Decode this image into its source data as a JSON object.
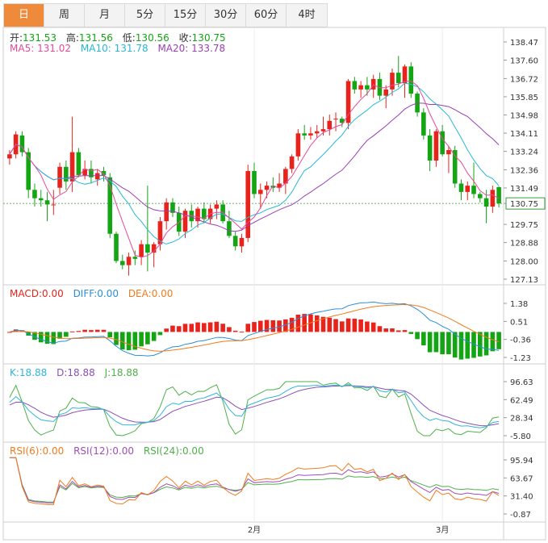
{
  "tabs": [
    {
      "label": "日",
      "active": true
    },
    {
      "label": "周"
    },
    {
      "label": "月"
    },
    {
      "label": "5分"
    },
    {
      "label": "15分"
    },
    {
      "label": "30分"
    },
    {
      "label": "60分"
    },
    {
      "label": "4时"
    }
  ],
  "colors": {
    "up": "#e8231c",
    "down": "#13a513",
    "ma5": "#e64a9a",
    "ma10": "#27b8d6",
    "ma20": "#9b3fb5",
    "macd": "#e8231c",
    "diff": "#2a8fd6",
    "dea": "#f07b1e",
    "k": "#30b6d9",
    "d": "#8a50b5",
    "j": "#4fb04a",
    "rsi6": "#f07b1e",
    "rsi12": "#a04fb5",
    "rsi24": "#4fb04a",
    "tab_active": "#ef8a3a"
  },
  "ohlc_legend": {
    "open_label": "开:",
    "open": "131.53",
    "high_label": "高:",
    "high": "131.56",
    "low_label": "低:",
    "low": "130.56",
    "close_label": "收:",
    "close": "130.75"
  },
  "ma_legend": {
    "ma5_label": "MA5:",
    "ma5": "131.02",
    "ma10_label": "MA10:",
    "ma10": "131.78",
    "ma20_label": "MA20:",
    "ma20": "133.78"
  },
  "macd_legend": {
    "macd_label": "MACD:",
    "macd": "0.00",
    "diff_label": "DIFF:",
    "diff": "0.00",
    "dea_label": "DEA:",
    "dea": "0.00"
  },
  "kdj_legend": {
    "k_label": "K:",
    "k": "18.88",
    "d_label": "D:",
    "d": "18.88",
    "j_label": "J:",
    "j": "18.88"
  },
  "rsi_legend": {
    "rsi6_label": "RSI(6):",
    "rsi6": "0.00",
    "rsi12_label": "RSI(12):",
    "rsi12": "0.00",
    "rsi24_label": "RSI(24):",
    "rsi24": "0.00"
  },
  "chart_data": [
    {
      "type": "candlestick",
      "y_ticks": [
        "138.47",
        "137.60",
        "136.72",
        "135.85",
        "134.98",
        "134.11",
        "133.24",
        "132.36",
        "131.49",
        "130.75",
        "129.75",
        "128.88",
        "128.00",
        "127.13"
      ],
      "ylim": [
        127.13,
        138.47
      ],
      "last_price": 130.75,
      "x_labels": [
        {
          "index": 39,
          "label": "2月"
        },
        {
          "index": 69,
          "label": "3月"
        }
      ],
      "candles": [
        {
          "o": 132.9,
          "h": 133.3,
          "l": 132.6,
          "c": 133.1
        },
        {
          "o": 133.1,
          "h": 134.2,
          "l": 132.9,
          "c": 134.05
        },
        {
          "o": 134.0,
          "h": 134.2,
          "l": 133.0,
          "c": 133.2
        },
        {
          "o": 133.2,
          "h": 133.4,
          "l": 131.0,
          "c": 131.4
        },
        {
          "o": 131.4,
          "h": 131.7,
          "l": 130.6,
          "c": 131.0
        },
        {
          "o": 131.0,
          "h": 131.4,
          "l": 130.6,
          "c": 130.9
        },
        {
          "o": 130.9,
          "h": 131.3,
          "l": 129.9,
          "c": 130.7
        },
        {
          "o": 130.7,
          "h": 131.4,
          "l": 130.2,
          "c": 130.7
        },
        {
          "o": 131.5,
          "h": 132.7,
          "l": 131.2,
          "c": 132.5
        },
        {
          "o": 132.5,
          "h": 132.8,
          "l": 131.4,
          "c": 131.8
        },
        {
          "o": 131.8,
          "h": 134.9,
          "l": 131.3,
          "c": 133.2
        },
        {
          "o": 133.2,
          "h": 133.4,
          "l": 132.0,
          "c": 132.1
        },
        {
          "o": 132.1,
          "h": 132.8,
          "l": 131.9,
          "c": 132.4
        },
        {
          "o": 132.4,
          "h": 132.8,
          "l": 131.7,
          "c": 132.0
        },
        {
          "o": 131.9,
          "h": 132.4,
          "l": 131.6,
          "c": 132.2
        },
        {
          "o": 132.3,
          "h": 132.5,
          "l": 131.8,
          "c": 132.1
        },
        {
          "o": 132.0,
          "h": 132.2,
          "l": 129.1,
          "c": 129.3
        },
        {
          "o": 129.3,
          "h": 129.4,
          "l": 127.9,
          "c": 128.0
        },
        {
          "o": 128.0,
          "h": 128.3,
          "l": 127.6,
          "c": 127.8
        },
        {
          "o": 127.8,
          "h": 128.4,
          "l": 127.3,
          "c": 128.2
        },
        {
          "o": 128.2,
          "h": 128.5,
          "l": 127.8,
          "c": 128.1
        },
        {
          "o": 128.2,
          "h": 129.0,
          "l": 127.8,
          "c": 128.8
        },
        {
          "o": 128.8,
          "h": 131.6,
          "l": 127.5,
          "c": 128.4
        },
        {
          "o": 128.4,
          "h": 128.9,
          "l": 127.7,
          "c": 128.8
        },
        {
          "o": 128.8,
          "h": 130.1,
          "l": 128.5,
          "c": 129.9
        },
        {
          "o": 129.9,
          "h": 131.0,
          "l": 129.5,
          "c": 130.8
        },
        {
          "o": 130.8,
          "h": 131.0,
          "l": 130.1,
          "c": 130.3
        },
        {
          "o": 130.3,
          "h": 130.6,
          "l": 129.2,
          "c": 129.4
        },
        {
          "o": 129.4,
          "h": 130.5,
          "l": 129.1,
          "c": 130.4
        },
        {
          "o": 130.4,
          "h": 130.7,
          "l": 129.6,
          "c": 129.9
        },
        {
          "o": 129.9,
          "h": 130.6,
          "l": 129.6,
          "c": 130.5
        },
        {
          "o": 130.5,
          "h": 130.8,
          "l": 129.8,
          "c": 130.0
        },
        {
          "o": 130.0,
          "h": 130.7,
          "l": 129.8,
          "c": 130.5
        },
        {
          "o": 130.5,
          "h": 130.9,
          "l": 130.0,
          "c": 130.7
        },
        {
          "o": 130.7,
          "h": 130.9,
          "l": 129.8,
          "c": 129.9
        },
        {
          "o": 129.9,
          "h": 130.4,
          "l": 129.1,
          "c": 129.2
        },
        {
          "o": 129.2,
          "h": 129.4,
          "l": 128.5,
          "c": 128.7
        },
        {
          "o": 128.7,
          "h": 129.3,
          "l": 128.4,
          "c": 129.1
        },
        {
          "o": 129.1,
          "h": 132.6,
          "l": 128.9,
          "c": 132.3
        },
        {
          "o": 132.3,
          "h": 132.7,
          "l": 131.0,
          "c": 131.2
        },
        {
          "o": 131.2,
          "h": 131.7,
          "l": 130.5,
          "c": 131.4
        },
        {
          "o": 131.4,
          "h": 131.8,
          "l": 131.0,
          "c": 131.6
        },
        {
          "o": 131.6,
          "h": 132.0,
          "l": 131.3,
          "c": 131.5
        },
        {
          "o": 131.5,
          "h": 132.2,
          "l": 131.3,
          "c": 131.7
        },
        {
          "o": 131.7,
          "h": 132.5,
          "l": 131.2,
          "c": 132.4
        },
        {
          "o": 132.4,
          "h": 133.1,
          "l": 132.2,
          "c": 133.0
        },
        {
          "o": 133.0,
          "h": 134.3,
          "l": 132.8,
          "c": 134.1
        },
        {
          "o": 134.1,
          "h": 134.5,
          "l": 133.8,
          "c": 134.0
        },
        {
          "o": 134.0,
          "h": 134.4,
          "l": 133.8,
          "c": 134.1
        },
        {
          "o": 134.1,
          "h": 134.5,
          "l": 133.9,
          "c": 134.2
        },
        {
          "o": 134.2,
          "h": 134.9,
          "l": 134.0,
          "c": 134.3
        },
        {
          "o": 134.3,
          "h": 135.0,
          "l": 134.0,
          "c": 134.7
        },
        {
          "o": 134.8,
          "h": 135.1,
          "l": 134.2,
          "c": 134.8
        },
        {
          "o": 134.8,
          "h": 134.9,
          "l": 134.4,
          "c": 134.6
        },
        {
          "o": 134.6,
          "h": 136.7,
          "l": 134.3,
          "c": 136.6
        },
        {
          "o": 136.6,
          "h": 136.8,
          "l": 136.0,
          "c": 136.2
        },
        {
          "o": 136.2,
          "h": 136.6,
          "l": 135.8,
          "c": 136.4
        },
        {
          "o": 136.4,
          "h": 136.8,
          "l": 135.9,
          "c": 136.2
        },
        {
          "o": 136.2,
          "h": 136.9,
          "l": 135.8,
          "c": 136.7
        },
        {
          "o": 136.7,
          "h": 137.0,
          "l": 135.7,
          "c": 135.9
        },
        {
          "o": 135.9,
          "h": 136.4,
          "l": 135.3,
          "c": 136.2
        },
        {
          "o": 136.2,
          "h": 137.2,
          "l": 135.9,
          "c": 137.0
        },
        {
          "o": 137.0,
          "h": 137.8,
          "l": 136.3,
          "c": 136.5
        },
        {
          "o": 136.5,
          "h": 137.4,
          "l": 135.8,
          "c": 137.3
        },
        {
          "o": 137.3,
          "h": 137.5,
          "l": 135.8,
          "c": 136.0
        },
        {
          "o": 136.0,
          "h": 136.1,
          "l": 134.9,
          "c": 135.1
        },
        {
          "o": 135.1,
          "h": 135.3,
          "l": 133.8,
          "c": 134.0
        },
        {
          "o": 134.0,
          "h": 134.3,
          "l": 132.3,
          "c": 132.8
        },
        {
          "o": 132.8,
          "h": 134.3,
          "l": 132.5,
          "c": 134.2
        },
        {
          "o": 134.2,
          "h": 134.5,
          "l": 133.0,
          "c": 133.1
        },
        {
          "o": 133.1,
          "h": 133.5,
          "l": 132.2,
          "c": 133.3
        },
        {
          "o": 133.3,
          "h": 133.5,
          "l": 131.5,
          "c": 131.7
        },
        {
          "o": 131.7,
          "h": 131.9,
          "l": 130.9,
          "c": 131.3
        },
        {
          "o": 131.3,
          "h": 131.8,
          "l": 130.9,
          "c": 131.6
        },
        {
          "o": 131.6,
          "h": 132.7,
          "l": 131.0,
          "c": 131.2
        },
        {
          "o": 131.2,
          "h": 131.3,
          "l": 130.8,
          "c": 131.0
        },
        {
          "o": 131.0,
          "h": 131.4,
          "l": 129.8,
          "c": 130.6
        },
        {
          "o": 130.6,
          "h": 131.6,
          "l": 130.3,
          "c": 131.4
        },
        {
          "o": 131.53,
          "h": 131.56,
          "l": 130.56,
          "c": 130.75
        }
      ]
    },
    {
      "type": "bar",
      "y_ticks": [
        "1.38",
        "0.51",
        "-0.36",
        "-1.23"
      ],
      "ylim": [
        -1.23,
        1.38
      ]
    },
    {
      "type": "line",
      "y_ticks": [
        "96.63",
        "62.49",
        "28.34",
        "-5.80"
      ],
      "ylim": [
        -5.8,
        96.63
      ]
    },
    {
      "type": "line",
      "y_ticks": [
        "95.94",
        "63.67",
        "31.40",
        "-0.87"
      ],
      "ylim": [
        -0.87,
        95.94
      ]
    }
  ]
}
